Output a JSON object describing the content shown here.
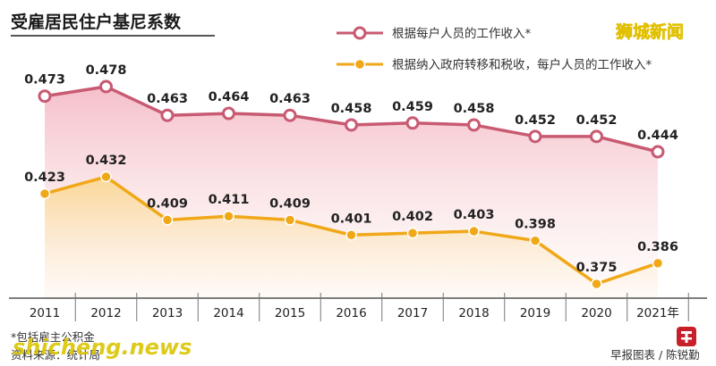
{
  "header": {
    "title": "受雇居民住户基尼系数"
  },
  "watermark": {
    "brand": "狮城新闻",
    "site": "shicheng.news"
  },
  "footer": {
    "note": "*包括雇主公积金",
    "source": "资料来源：统计局",
    "credit": "早报图表 / 陈锐勤"
  },
  "colors": {
    "series1": "#c85a72",
    "series2": "#f0a818",
    "axis": "#555555"
  },
  "chart_data": {
    "type": "line",
    "title": "受雇居民住户基尼系数",
    "categories": [
      "2011",
      "2012",
      "2013",
      "2014",
      "2015",
      "2016",
      "2017",
      "2018",
      "2019",
      "2020",
      "2021年"
    ],
    "series": [
      {
        "name": "根据每户人员的工作收入*",
        "values": [
          0.473,
          0.478,
          0.463,
          0.464,
          0.463,
          0.458,
          0.459,
          0.458,
          0.452,
          0.452,
          0.444
        ],
        "labels": [
          "0.473",
          "0.478",
          "0.463",
          "0.464",
          "0.463",
          "0.458",
          "0.459",
          "0.458",
          "0.452",
          "0.452",
          "0.444"
        ]
      },
      {
        "name": "根据纳入政府转移和税收，每户人员的工作收入*",
        "values": [
          0.423,
          0.432,
          0.409,
          0.411,
          0.409,
          0.401,
          0.402,
          0.403,
          0.398,
          0.375,
          0.386
        ],
        "labels": [
          "0.423",
          "0.432",
          "0.409",
          "0.411",
          "0.409",
          "0.401",
          "0.402",
          "0.403",
          "0.398",
          "0.375",
          "0.386"
        ]
      }
    ],
    "legend": "top-right",
    "grid": false
  }
}
